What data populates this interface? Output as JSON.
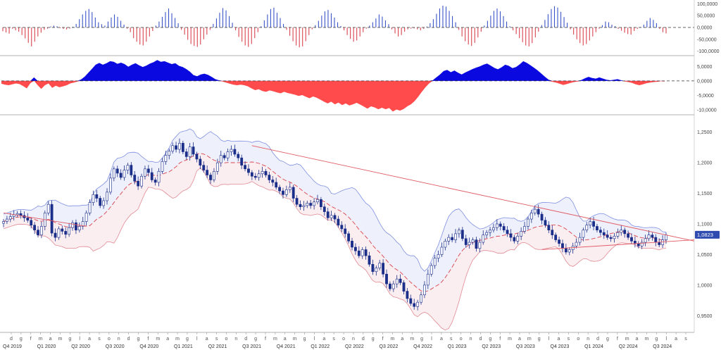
{
  "chart_data": [
    {
      "type": "bar",
      "panel": "histogram-top",
      "yticks": [
        "100,0000",
        "50,0000",
        "0,0000",
        "-50,0000",
        "-100,0000"
      ],
      "ytick_values": [
        100000,
        50000,
        0,
        -50000,
        -100000
      ],
      "ylim": [
        -110000,
        110000
      ],
      "zero_line": "dashed",
      "colors": {
        "positive": "#3b55c9",
        "negative": "#d9434f"
      },
      "bars": [
        -16000,
        -21000,
        -26000,
        -5000,
        -12000,
        -18000,
        -32000,
        -46000,
        -65000,
        -80000,
        -60000,
        -38000,
        -22000,
        -10000,
        -5000,
        4000,
        8000,
        5000,
        -3000,
        -6000,
        -8000,
        -5000,
        3000,
        15000,
        35000,
        55000,
        70000,
        78000,
        65000,
        42000,
        22000,
        14000,
        8000,
        25000,
        42000,
        55000,
        45000,
        28000,
        12000,
        -5000,
        -20000,
        -45000,
        -60000,
        -72000,
        -76000,
        -60000,
        -38000,
        -15000,
        8000,
        25000,
        45000,
        65000,
        80000,
        60000,
        40000,
        18000,
        -10000,
        -30000,
        -52000,
        -70000,
        -78000,
        -82000,
        -72000,
        -50000,
        -30000,
        -10000,
        15000,
        38000,
        62000,
        82000,
        72000,
        48000,
        20000,
        -12000,
        -40000,
        -60000,
        -76000,
        -82000,
        -70000,
        -45000,
        -20000,
        5000,
        30000,
        55000,
        78000,
        84000,
        62000,
        40000,
        15000,
        -10000,
        -35000,
        -58000,
        -76000,
        -84000,
        -80000,
        -58000,
        -32000,
        -8000,
        10000,
        28000,
        50000,
        68000,
        74000,
        60000,
        42000,
        22000,
        6000,
        -12000,
        -32000,
        -48000,
        -60000,
        -55000,
        -38000,
        -20000,
        -5000,
        8000,
        22000,
        38000,
        55000,
        46000,
        30000,
        14000,
        -8000,
        -25000,
        -38000,
        -32000,
        -18000,
        -8000,
        -5000,
        -4000,
        -8000,
        -12000,
        -6000,
        4000,
        18000,
        35000,
        58000,
        80000,
        92000,
        88000,
        70000,
        48000,
        22000,
        -10000,
        -38000,
        -58000,
        -72000,
        -78000,
        -65000,
        -42000,
        -18000,
        8000,
        28000,
        50000,
        70000,
        80000,
        68000,
        48000,
        25000,
        5000,
        -12000,
        -28000,
        -45000,
        -62000,
        -76000,
        -80000,
        -66000,
        -42000,
        -18000,
        10000,
        32000,
        56000,
        78000,
        90000,
        84000,
        66000,
        44000,
        20000,
        -8000,
        -30000,
        -50000,
        -66000,
        -76000,
        -70000,
        -55000,
        -38000,
        -20000,
        -5000,
        10000,
        25000,
        22000,
        12000,
        6000,
        -6000,
        -14000,
        -22000,
        -28000,
        -30000,
        -15000,
        -6000,
        2000,
        12000,
        28000,
        40000,
        32000,
        18000,
        -6000,
        -20000,
        -25000
      ]
    },
    {
      "type": "area",
      "panel": "oscillator-middle",
      "yticks": [
        "5,0000",
        "0,0000",
        "-5,0000",
        "-10,0000"
      ],
      "ytick_values": [
        5000,
        0,
        -5000,
        -10000
      ],
      "ylim": [
        -11000,
        8000
      ],
      "zero_line": "dashed",
      "colors": {
        "positive": "#0a0ae0",
        "negative": "#ff4b4b"
      },
      "values": [
        -1000,
        -1300,
        -1500,
        -1200,
        -900,
        -1100,
        -1800,
        -2600,
        -800,
        1200,
        -1500,
        -2800,
        -1500,
        -900,
        -2400,
        -1700,
        -2200,
        -1900,
        -1500,
        -900,
        -600,
        -200,
        500,
        1500,
        2800,
        4200,
        5600,
        6200,
        5600,
        6100,
        6800,
        6600,
        5900,
        6300,
        5800,
        4900,
        5600,
        6100,
        5400,
        4800,
        5300,
        6000,
        6500,
        7200,
        6600,
        6800,
        6300,
        5800,
        6100,
        5200,
        4800,
        4100,
        3200,
        2000,
        1600,
        2200,
        2500,
        2100,
        1400,
        600,
        200,
        -200,
        -600,
        -1000,
        -1300,
        -1500,
        -1300,
        -1500,
        -1900,
        -2600,
        -3200,
        -2900,
        -3500,
        -3800,
        -3300,
        -3600,
        -4000,
        -4300,
        -3800,
        -4200,
        -4500,
        -4800,
        -5200,
        -4900,
        -5500,
        -6000,
        -5400,
        -5800,
        -6500,
        -7200,
        -7800,
        -7200,
        -8100,
        -7500,
        -8400,
        -7800,
        -8500,
        -8100,
        -7600,
        -8200,
        -8900,
        -9600,
        -8800,
        -9200,
        -9800,
        -9300,
        -9800,
        -9400,
        -10600,
        -9900,
        -10300,
        -9700,
        -8800,
        -8100,
        -7000,
        -5500,
        -3800,
        -2200,
        -900,
        200,
        1200,
        2200,
        3400,
        3800,
        3000,
        3600,
        2800,
        2200,
        2900,
        3500,
        4100,
        4600,
        5000,
        5600,
        6000,
        5300,
        4500,
        4000,
        4700,
        5600,
        5200,
        4400,
        4800,
        5700,
        6800,
        6200,
        5400,
        4500,
        3600,
        2500,
        1400,
        400,
        -300,
        -600,
        -1000,
        -1400,
        -1100,
        -700,
        -400,
        -200,
        300,
        900,
        1400,
        1000,
        800,
        1200,
        800,
        400,
        200,
        400,
        600,
        200,
        -200,
        -400,
        -700,
        -1200,
        -1500,
        -1200,
        -800,
        -600,
        -400,
        -300,
        -100,
        -200
      ]
    },
    {
      "type": "candlestick",
      "panel": "price-main",
      "last_value": "1,0823",
      "yticks": [
        "1,2500",
        "1,2000",
        "1,1500",
        "1,1000",
        "1,0500",
        "1,0000",
        "0,9500"
      ],
      "ytick_values": [
        1.25,
        1.2,
        1.15,
        1.1,
        1.05,
        1.0,
        0.95
      ],
      "ylim": [
        0.925,
        1.275
      ],
      "colors": {
        "candle": "#1a2e8a",
        "band_upper_fill": "#eef0fb",
        "band_lower_fill": "#fbeef0",
        "band_upper_line": "#7f8fe0",
        "band_lower_line": "#e08a94",
        "mid_line": "#d9434f",
        "trend_line": "#e05a64",
        "last_value_badge": "#2f4bb0"
      },
      "x_labels": [
        "d",
        "g",
        "f",
        "m",
        "a",
        "m",
        "g",
        "l",
        "a",
        "s",
        "o",
        "n",
        "d",
        "g",
        "f",
        "m",
        "a",
        "m",
        "g",
        "l",
        "a",
        "s",
        "o",
        "n",
        "d",
        "g",
        "f",
        "m",
        "a",
        "m",
        "g",
        "l",
        "a",
        "s",
        "o",
        "n",
        "d",
        "g",
        "f",
        "m",
        "a",
        "m",
        "g",
        "l",
        "a",
        "s",
        "o",
        "n",
        "d",
        "g",
        "f",
        "m",
        "a",
        "m",
        "g",
        "l",
        "a",
        "s",
        "o",
        "n",
        "d",
        "g",
        "f",
        "m",
        "a",
        "m",
        "g",
        "l",
        "a",
        "s"
      ],
      "quarter_labels": [
        "Q4 2019",
        "Q1 2020",
        "Q2 2020",
        "Q3 2020",
        "Q4 2020",
        "Q1 2021",
        "Q2 2021",
        "Q3 2021",
        "Q4 2021",
        "Q1 2022",
        "Q2 2022",
        "Q3 2022",
        "Q4 2022",
        "Q1 2023",
        "Q2 2023",
        "Q3 2023",
        "Q4 2023",
        "Q1 2024",
        "Q2 2024",
        "Q3 2024"
      ],
      "close": [
        1.104,
        1.108,
        1.112,
        1.115,
        1.117,
        1.114,
        1.11,
        1.106,
        1.098,
        1.09,
        1.082,
        1.096,
        1.118,
        1.132,
        1.085,
        1.078,
        1.092,
        1.088,
        1.083,
        1.094,
        1.102,
        1.09,
        1.096,
        1.104,
        1.118,
        1.135,
        1.148,
        1.142,
        1.13,
        1.138,
        1.152,
        1.175,
        1.19,
        1.183,
        1.176,
        1.188,
        1.196,
        1.18,
        1.17,
        1.162,
        1.178,
        1.19,
        1.184,
        1.172,
        1.168,
        1.186,
        1.202,
        1.212,
        1.219,
        1.228,
        1.222,
        1.232,
        1.218,
        1.21,
        1.226,
        1.214,
        1.206,
        1.196,
        1.188,
        1.18,
        1.172,
        1.186,
        1.2,
        1.212,
        1.208,
        1.218,
        1.222,
        1.214,
        1.208,
        1.196,
        1.19,
        1.184,
        1.178,
        1.176,
        1.182,
        1.186,
        1.18,
        1.172,
        1.168,
        1.16,
        1.154,
        1.148,
        1.156,
        1.16,
        1.142,
        1.132,
        1.128,
        1.13,
        1.134,
        1.13,
        1.136,
        1.14,
        1.128,
        1.12,
        1.11,
        1.114,
        1.108,
        1.098,
        1.092,
        1.084,
        1.072,
        1.062,
        1.056,
        1.048,
        1.058,
        1.048,
        1.034,
        1.022,
        1.028,
        1.036,
        1.018,
        1.002,
        0.994,
        1.002,
        1.01,
        1.004,
        0.99,
        0.978,
        0.97,
        0.965,
        0.972,
        0.984,
        1.0,
        1.018,
        1.032,
        1.044,
        1.05,
        1.062,
        1.072,
        1.078,
        1.074,
        1.084,
        1.09,
        1.076,
        1.066,
        1.07,
        1.074,
        1.06,
        1.07,
        1.082,
        1.086,
        1.09,
        1.094,
        1.1,
        1.096,
        1.09,
        1.084,
        1.078,
        1.072,
        1.08,
        1.088,
        1.096,
        1.108,
        1.118,
        1.124,
        1.116,
        1.106,
        1.098,
        1.09,
        1.082,
        1.074,
        1.068,
        1.06,
        1.054,
        1.058,
        1.064,
        1.07,
        1.078,
        1.09,
        1.098,
        1.104,
        1.096,
        1.09,
        1.086,
        1.082,
        1.078,
        1.076,
        1.08,
        1.086,
        1.09,
        1.084,
        1.078,
        1.072,
        1.068,
        1.064,
        1.07,
        1.076,
        1.082,
        1.078,
        1.07,
        1.066,
        1.074,
        1.082
      ]
    }
  ]
}
